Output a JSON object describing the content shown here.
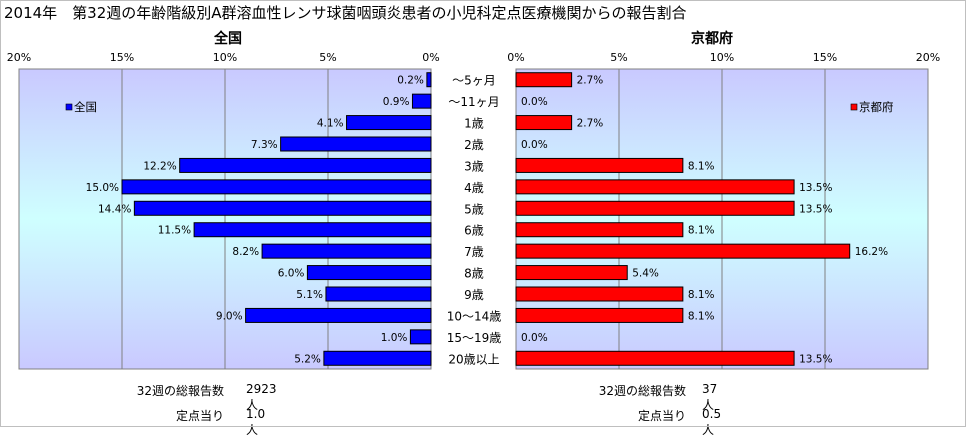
{
  "title": "2014年　第32週の年齢階級別A群溶血性レンサ球菌咽頭炎患者の小児科定点医療機関からの報告割合",
  "chart_data": {
    "type": "bar",
    "categories": [
      "～5ヶ月",
      "～11ヶ月",
      "1歳",
      "2歳",
      "3歳",
      "4歳",
      "5歳",
      "6歳",
      "7歳",
      "8歳",
      "9歳",
      "10～14歳",
      "15～19歳",
      "20歳以上"
    ],
    "panels": [
      {
        "title": "全国",
        "legend": "全国",
        "color": "#0000ff",
        "direction": "left",
        "xlim": [
          0,
          20
        ],
        "ticks": [
          "20%",
          "15%",
          "10%",
          "5%",
          "0%"
        ],
        "values": [
          0.2,
          0.9,
          4.1,
          7.3,
          12.2,
          15.0,
          14.4,
          11.5,
          8.2,
          6.0,
          5.1,
          9.0,
          1.0,
          5.2
        ]
      },
      {
        "title": "京都府",
        "legend": "京都府",
        "color": "#ff0000",
        "direction": "right",
        "xlim": [
          0,
          20
        ],
        "ticks": [
          "0%",
          "5%",
          "10%",
          "15%",
          "20%"
        ],
        "values": [
          2.7,
          0.0,
          2.7,
          0.0,
          8.1,
          13.5,
          13.5,
          8.1,
          16.2,
          5.4,
          8.1,
          8.1,
          0.0,
          13.5
        ]
      }
    ]
  },
  "footer": {
    "left": {
      "total_label": "32週の総報告数",
      "total_value": "2923人",
      "per_label": "定点当り",
      "per_value": "1.0人"
    },
    "right": {
      "total_label": "32週の総報告数",
      "total_value": "37人",
      "per_label": "定点当り",
      "per_value": "0.5人"
    }
  }
}
